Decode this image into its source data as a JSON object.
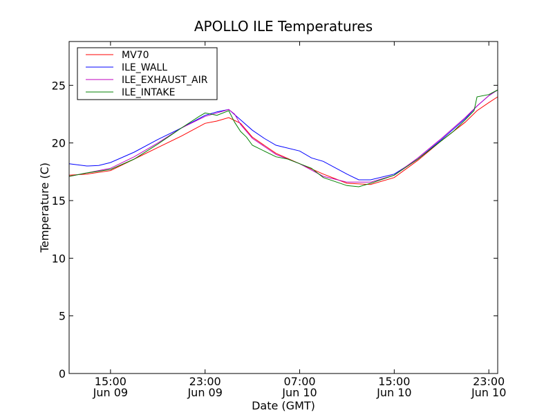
{
  "chart_data": {
    "type": "line",
    "title": "APOLLO ILE Temperatures",
    "xlabel": "Date (GMT)",
    "ylabel": "Temperature (C)",
    "xlim": [
      "2013-06-09 11:30",
      "2013-06-10 23:45"
    ],
    "ylim": [
      0,
      28.8
    ],
    "grid": false,
    "legend_position": "top-left",
    "x_ticks": [
      {
        "time": "2013-06-09 15:00",
        "label_time": "15:00",
        "label_date": "Jun 09"
      },
      {
        "time": "2013-06-09 23:00",
        "label_time": "23:00",
        "label_date": "Jun 09"
      },
      {
        "time": "2013-06-10 07:00",
        "label_time": "07:00",
        "label_date": "Jun 10"
      },
      {
        "time": "2013-06-10 15:00",
        "label_time": "15:00",
        "label_date": "Jun 10"
      },
      {
        "time": "2013-06-10 23:00",
        "label_time": "23:00",
        "label_date": "Jun 10"
      }
    ],
    "y_ticks": [
      0,
      5,
      10,
      15,
      20,
      25
    ],
    "series": [
      {
        "name": "MV70",
        "color": "#ff0000",
        "x": [
          "2013-06-09 11:30",
          "2013-06-09 13:00",
          "2013-06-09 15:00",
          "2013-06-09 17:00",
          "2013-06-09 19:00",
          "2013-06-09 21:00",
          "2013-06-09 23:00",
          "2013-06-10 00:00",
          "2013-06-10 01:00",
          "2013-06-10 02:00",
          "2013-06-10 03:00",
          "2013-06-10 05:00",
          "2013-06-10 07:00",
          "2013-06-10 09:00",
          "2013-06-10 11:00",
          "2013-06-10 13:00",
          "2013-06-10 15:00",
          "2013-06-10 17:00",
          "2013-06-10 19:00",
          "2013-06-10 21:00",
          "2013-06-10 22:00",
          "2013-06-10 23:00",
          "2013-06-10 23:45"
        ],
        "y": [
          17.2,
          17.3,
          17.6,
          18.6,
          19.6,
          20.6,
          21.7,
          21.9,
          22.2,
          21.7,
          20.5,
          19.1,
          18.2,
          17.3,
          16.5,
          16.4,
          17.0,
          18.5,
          20.2,
          21.8,
          22.8,
          23.5,
          24.0
        ]
      },
      {
        "name": "ILE_WALL",
        "color": "#0000ff",
        "x": [
          "2013-06-09 11:30",
          "2013-06-09 13:00",
          "2013-06-09 14:00",
          "2013-06-09 15:00",
          "2013-06-09 17:00",
          "2013-06-09 19:00",
          "2013-06-09 21:00",
          "2013-06-09 23:00",
          "2013-06-10 00:00",
          "2013-06-10 01:00",
          "2013-06-10 02:00",
          "2013-06-10 03:00",
          "2013-06-10 04:00",
          "2013-06-10 05:00",
          "2013-06-10 07:00",
          "2013-06-10 08:00",
          "2013-06-10 09:00",
          "2013-06-10 11:00",
          "2013-06-10 12:00",
          "2013-06-10 13:00",
          "2013-06-10 15:00",
          "2013-06-10 17:00",
          "2013-06-10 19:00",
          "2013-06-10 21:00",
          "2013-06-10 22:00",
          "2013-06-10 23:00",
          "2013-06-10 23:45"
        ],
        "y": [
          18.2,
          18.0,
          18.05,
          18.3,
          19.2,
          20.3,
          21.3,
          22.4,
          22.7,
          22.9,
          22.0,
          21.1,
          20.4,
          19.8,
          19.3,
          18.7,
          18.4,
          17.3,
          16.8,
          16.8,
          17.3,
          18.6,
          20.3,
          22.1,
          23.2,
          24.1,
          24.6
        ]
      },
      {
        "name": "ILE_EXHAUST_AIR",
        "color": "#bf00bf",
        "x": [
          "2013-06-09 11:30",
          "2013-06-09 13:00",
          "2013-06-09 15:00",
          "2013-06-09 17:00",
          "2013-06-09 19:00",
          "2013-06-09 21:00",
          "2013-06-09 23:00",
          "2013-06-10 00:00",
          "2013-06-10 01:00",
          "2013-06-10 01:30",
          "2013-06-10 02:00",
          "2013-06-10 03:00",
          "2013-06-10 05:00",
          "2013-06-10 07:00",
          "2013-06-10 09:00",
          "2013-06-10 11:00",
          "2013-06-10 13:00",
          "2013-06-10 15:00",
          "2013-06-10 17:00",
          "2013-06-10 19:00",
          "2013-06-10 21:00",
          "2013-06-10 22:00",
          "2013-06-10 23:00",
          "2013-06-10 23:45"
        ],
        "y": [
          17.1,
          17.4,
          17.8,
          18.8,
          20.0,
          21.3,
          22.3,
          22.6,
          22.9,
          22.5,
          21.6,
          20.4,
          19.0,
          18.2,
          17.1,
          16.6,
          16.6,
          17.2,
          18.7,
          20.4,
          22.2,
          23.2,
          24.1,
          24.6
        ]
      },
      {
        "name": "ILE_INTAKE",
        "color": "#008000",
        "x": [
          "2013-06-09 11:30",
          "2013-06-09 13:00",
          "2013-06-09 15:00",
          "2013-06-09 17:00",
          "2013-06-09 19:00",
          "2013-06-09 21:00",
          "2013-06-09 22:30",
          "2013-06-09 23:00",
          "2013-06-10 00:00",
          "2013-06-10 01:00",
          "2013-06-10 01:30",
          "2013-06-10 02:00",
          "2013-06-10 02:30",
          "2013-06-10 03:00",
          "2013-06-10 05:00",
          "2013-06-10 06:00",
          "2013-06-10 07:00",
          "2013-06-10 08:00",
          "2013-06-10 09:00",
          "2013-06-10 11:00",
          "2013-06-10 12:00",
          "2013-06-10 13:00",
          "2013-06-10 15:00",
          "2013-06-10 17:00",
          "2013-06-10 19:00",
          "2013-06-10 20:00",
          "2013-06-10 21:00",
          "2013-06-10 21:45",
          "2013-06-10 22:00",
          "2013-06-10 23:00",
          "2013-06-10 23:45"
        ],
        "y": [
          17.1,
          17.4,
          17.7,
          18.6,
          19.9,
          21.3,
          22.3,
          22.6,
          22.4,
          22.8,
          21.8,
          21.0,
          20.5,
          19.8,
          18.8,
          18.6,
          18.2,
          17.8,
          17.0,
          16.3,
          16.2,
          16.5,
          17.2,
          18.6,
          20.2,
          21.0,
          22.0,
          22.8,
          24.0,
          24.2,
          24.6
        ]
      }
    ]
  }
}
